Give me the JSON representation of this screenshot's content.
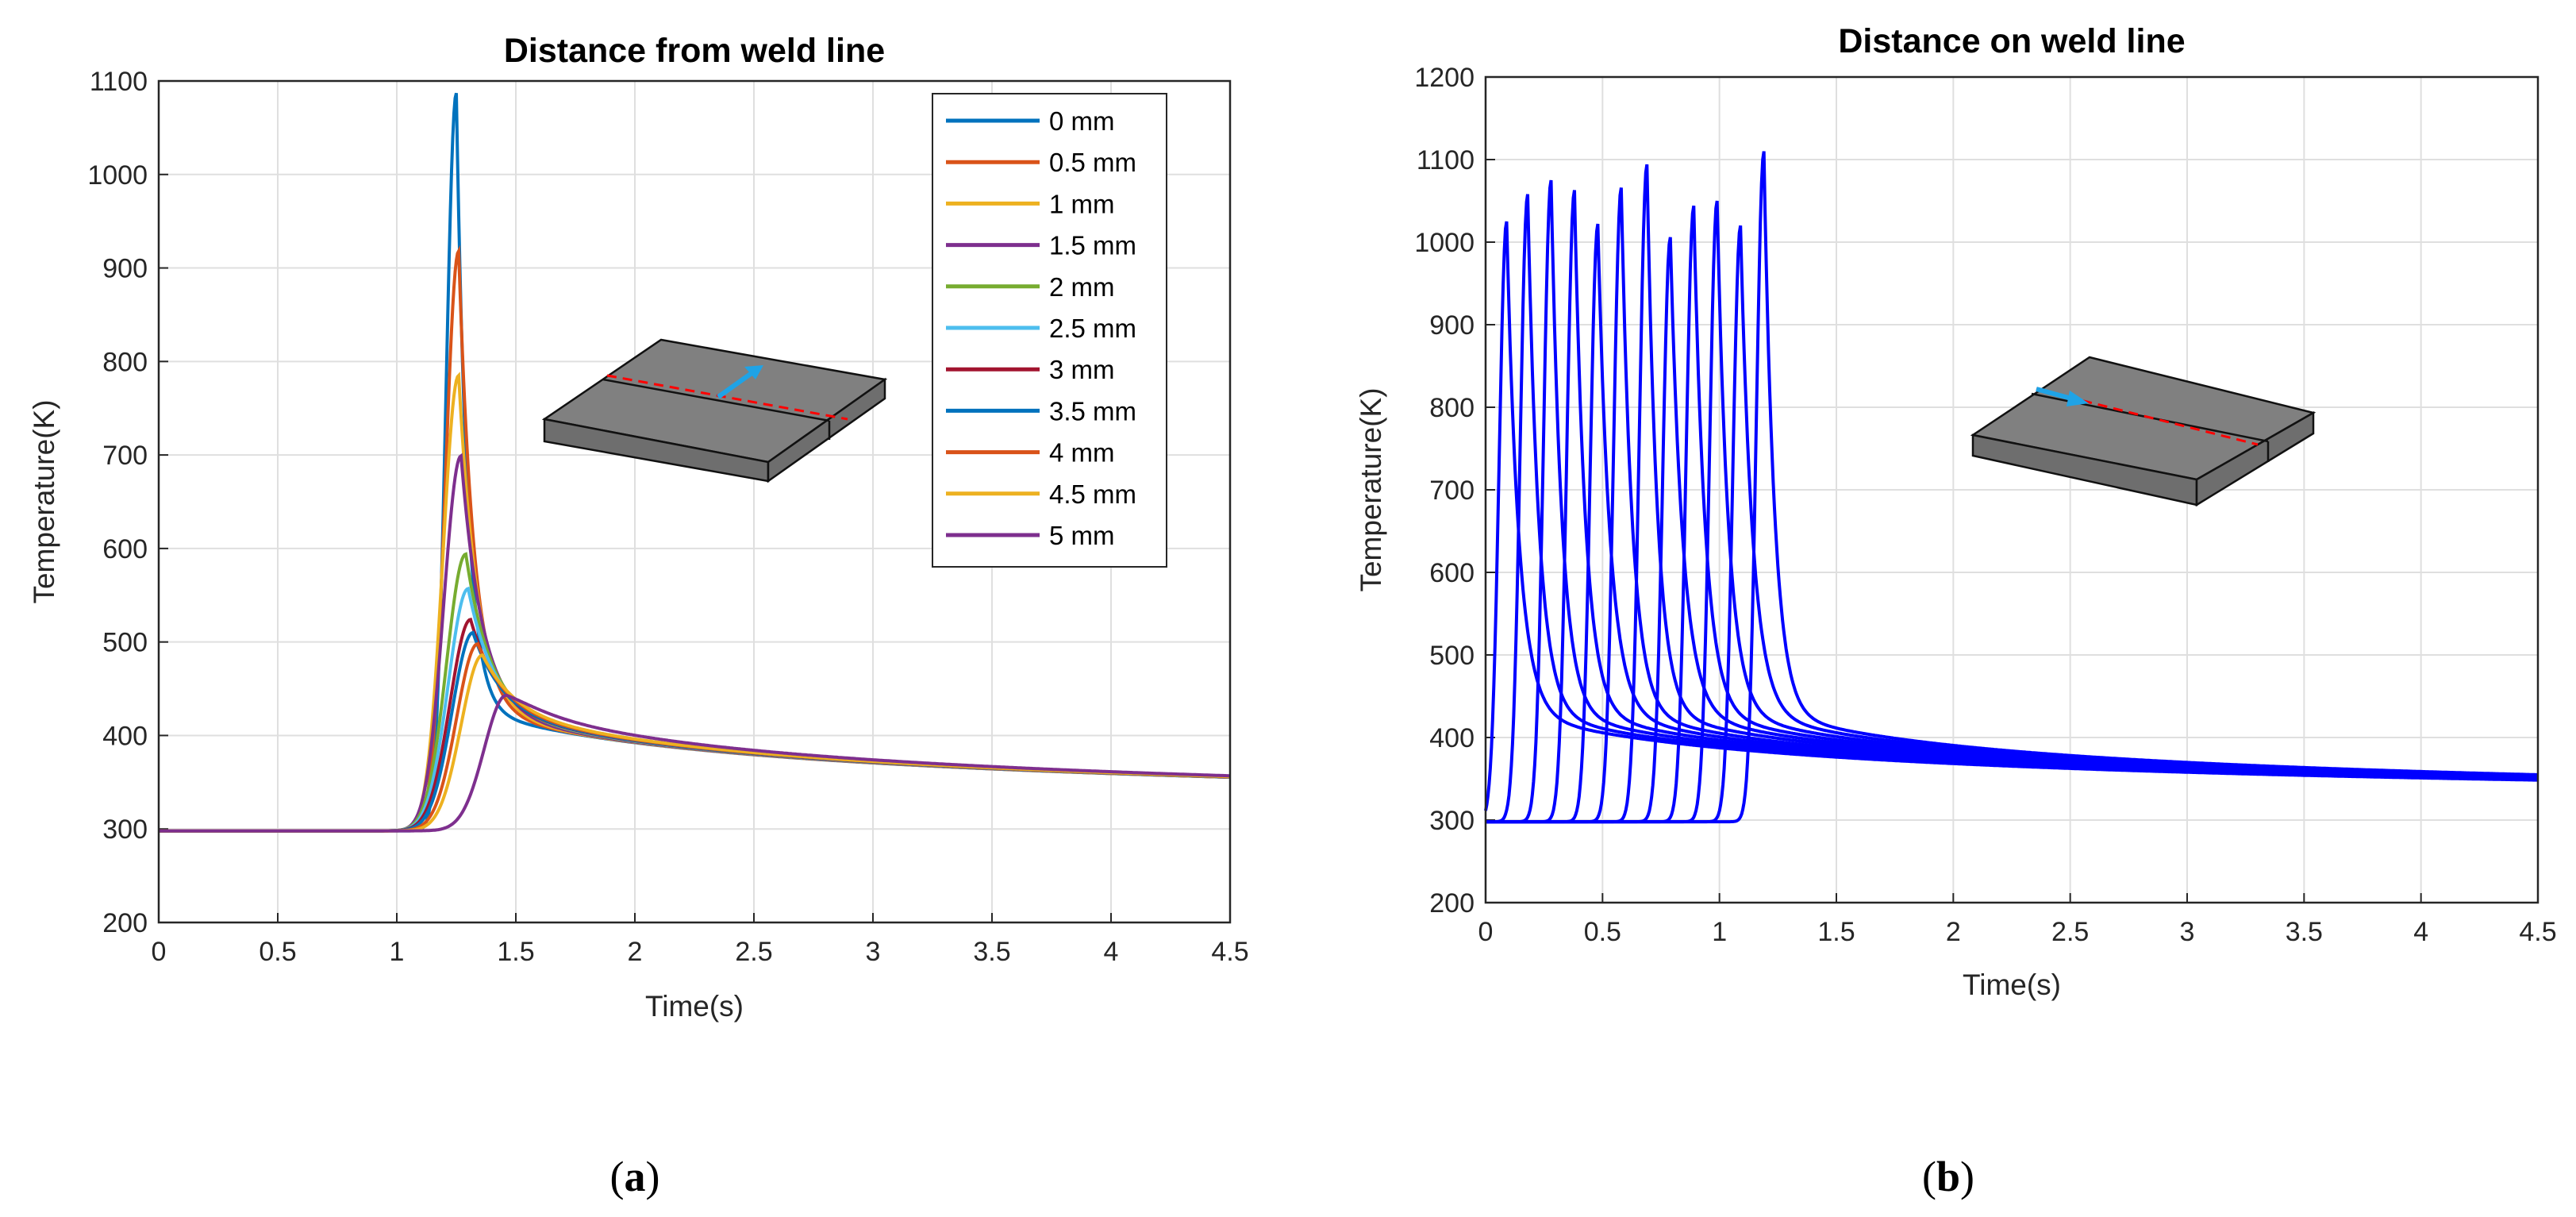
{
  "chart_data": [
    {
      "type": "line",
      "panel_label": "(a)",
      "title": "Distance from weld line",
      "xlabel": "Time(s)",
      "ylabel": "Temperature(K)",
      "xlim": [
        0,
        4.5
      ],
      "ylim": [
        200,
        1100
      ],
      "xticks": [
        "0",
        "0.5",
        "1",
        "1.5",
        "2",
        "2.5",
        "3",
        "3.5",
        "4",
        "4.5"
      ],
      "yticks": [
        "200",
        "300",
        "400",
        "500",
        "600",
        "700",
        "800",
        "900",
        "1000",
        "1100"
      ],
      "grid": true,
      "legend_position": "top-right",
      "series": [
        {
          "name": "0 mm",
          "color": "#0072BD",
          "peak_time": 1.25,
          "peak_temp": 1087
        },
        {
          "name": "0.5 mm",
          "color": "#D95319",
          "peak_time": 1.26,
          "peak_temp": 918
        },
        {
          "name": "1 mm",
          "color": "#EDB120",
          "peak_time": 1.26,
          "peak_temp": 785
        },
        {
          "name": "1.5 mm",
          "color": "#7E2F8E",
          "peak_time": 1.27,
          "peak_temp": 699
        },
        {
          "name": "2 mm",
          "color": "#77AC30",
          "peak_time": 1.29,
          "peak_temp": 594
        },
        {
          "name": "2.5 mm",
          "color": "#4DBEEE",
          "peak_time": 1.3,
          "peak_temp": 557
        },
        {
          "name": "3 mm",
          "color": "#A2142F",
          "peak_time": 1.31,
          "peak_temp": 524
        },
        {
          "name": "3.5 mm",
          "color": "#0072BD",
          "peak_time": 1.32,
          "peak_temp": 510
        },
        {
          "name": "4 mm",
          "color": "#D95319",
          "peak_time": 1.34,
          "peak_temp": 498
        },
        {
          "name": "4.5 mm",
          "color": "#EDB120",
          "peak_time": 1.36,
          "peak_temp": 486
        },
        {
          "name": "5 mm",
          "color": "#7E2F8E",
          "peak_time": 1.46,
          "peak_temp": 443
        }
      ]
    },
    {
      "type": "line",
      "panel_label": "(b)",
      "title": "Distance on weld line",
      "xlabel": "Time(s)",
      "ylabel": "Temperature(K)",
      "xlim": [
        0,
        4.5
      ],
      "ylim": [
        200,
        1200
      ],
      "xticks": [
        "0",
        "0.5",
        "1",
        "1.5",
        "2",
        "2.5",
        "3",
        "3.5",
        "4",
        "4.5"
      ],
      "yticks": [
        "200",
        "300",
        "400",
        "500",
        "600",
        "700",
        "800",
        "900",
        "1000",
        "1100",
        "1200"
      ],
      "grid": true,
      "line_color": "#0000FF",
      "series": [
        {
          "peak_time": 0.09,
          "peak_temp": 1025
        },
        {
          "peak_time": 0.18,
          "peak_temp": 1058
        },
        {
          "peak_time": 0.28,
          "peak_temp": 1075
        },
        {
          "peak_time": 0.38,
          "peak_temp": 1063
        },
        {
          "peak_time": 0.48,
          "peak_temp": 1022
        },
        {
          "peak_time": 0.58,
          "peak_temp": 1066
        },
        {
          "peak_time": 0.69,
          "peak_temp": 1094
        },
        {
          "peak_time": 0.79,
          "peak_temp": 1006
        },
        {
          "peak_time": 0.89,
          "peak_temp": 1044
        },
        {
          "peak_time": 0.99,
          "peak_temp": 1050
        },
        {
          "peak_time": 1.09,
          "peak_temp": 1020
        },
        {
          "peak_time": 1.19,
          "peak_temp": 1110
        }
      ]
    }
  ],
  "colors": {
    "axes": "#262626",
    "grid": "#dfdfdf",
    "plate_fill": "#808080",
    "plate_dark": "#6e6e6e",
    "weld_line": "#ff0000",
    "arrow": "#1fa3e6"
  }
}
